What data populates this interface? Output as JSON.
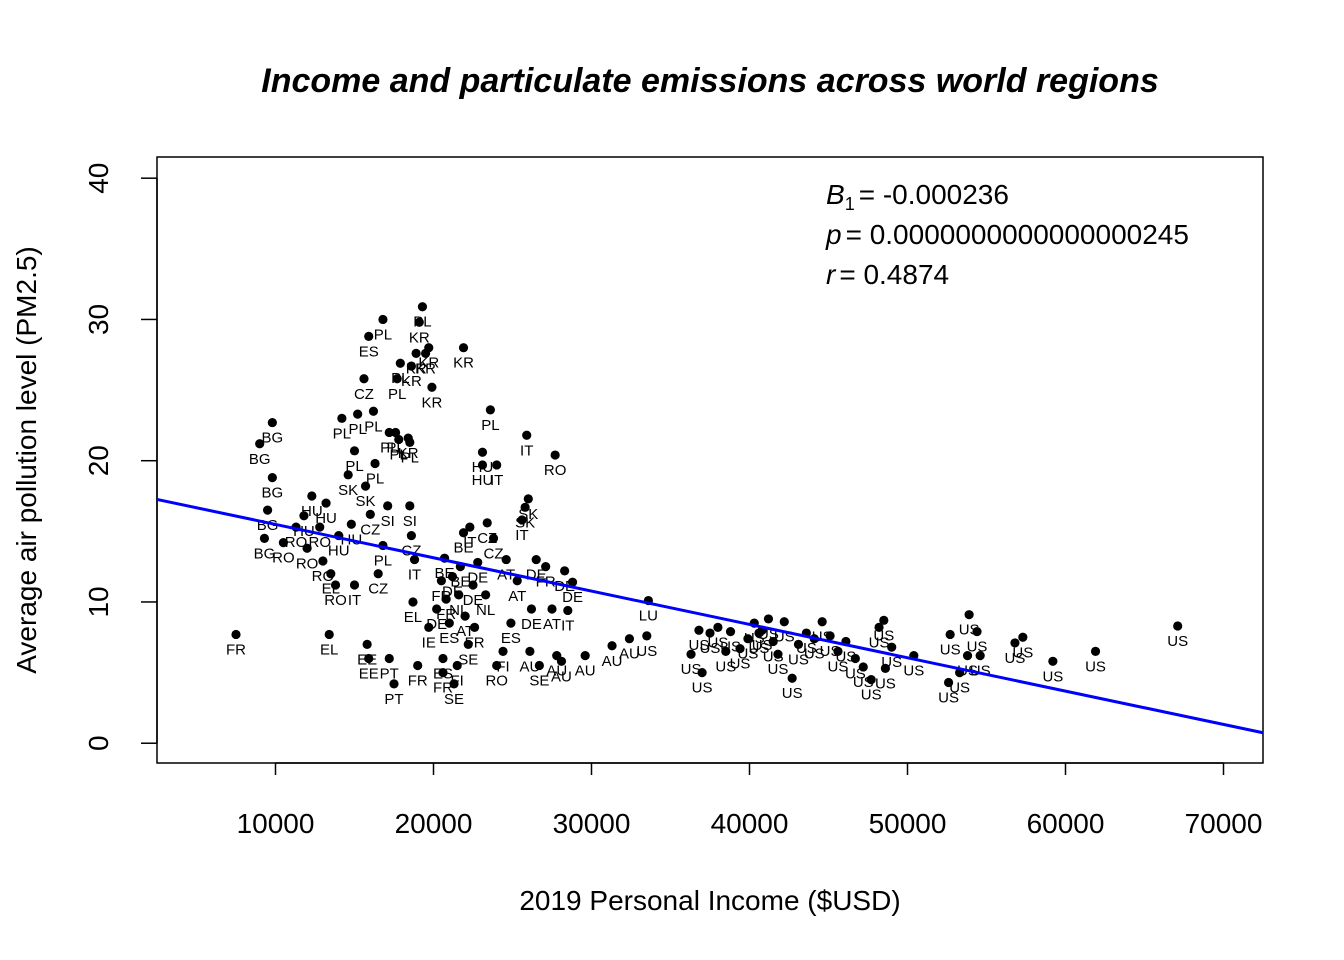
{
  "chart_data": {
    "type": "scatter",
    "title": "Income and particulate emissions across world regions",
    "xlabel": "2019 Personal Income ($USD)",
    "ylabel": "Average air pollution level (PM2.5)",
    "xlim": [
      2500,
      72500
    ],
    "ylim": [
      -1.4,
      41.5
    ],
    "xticks": [
      10000,
      20000,
      30000,
      40000,
      50000,
      60000,
      70000
    ],
    "yticks": [
      0,
      10,
      20,
      30,
      40
    ],
    "xtick_labels": [
      "10000",
      "20000",
      "30000",
      "40000",
      "50000",
      "60000",
      "70000"
    ],
    "ytick_labels": [
      "0",
      "10",
      "20",
      "30",
      "40"
    ],
    "grid": false,
    "point_color": "#000000",
    "regression": {
      "intercept": 17.85,
      "slope": -0.000236,
      "color": "#0000ff"
    },
    "annotations": {
      "b1_symbol": "B",
      "b1_sub": "1",
      "b1_value": "= -0.000236",
      "p_symbol": "p",
      "p_value": "= 0.0000000000000000245",
      "r_symbol": "r",
      "r_value": "= 0.4874"
    },
    "points": [
      {
        "x": 7500,
        "y": 7.7,
        "label": "FR"
      },
      {
        "x": 9000,
        "y": 21.2,
        "label": "BG"
      },
      {
        "x": 9800,
        "y": 22.7,
        "label": "BG"
      },
      {
        "x": 9800,
        "y": 18.8,
        "label": "BG"
      },
      {
        "x": 9500,
        "y": 16.5,
        "label": "BG"
      },
      {
        "x": 9300,
        "y": 14.5,
        "label": "BG"
      },
      {
        "x": 10500,
        "y": 14.2,
        "label": "RO"
      },
      {
        "x": 11300,
        "y": 15.3,
        "label": "RO"
      },
      {
        "x": 11800,
        "y": 16.1,
        "label": "HU"
      },
      {
        "x": 12000,
        "y": 13.8,
        "label": "RO"
      },
      {
        "x": 12300,
        "y": 17.5,
        "label": "HU"
      },
      {
        "x": 12800,
        "y": 15.3,
        "label": "RO"
      },
      {
        "x": 13000,
        "y": 12.9,
        "label": "RO"
      },
      {
        "x": 13200,
        "y": 17.0,
        "label": "HU"
      },
      {
        "x": 13400,
        "y": 7.7,
        "label": "EL"
      },
      {
        "x": 13500,
        "y": 12.0,
        "label": "EL"
      },
      {
        "x": 13800,
        "y": 11.2,
        "label": "RO"
      },
      {
        "x": 14000,
        "y": 14.7,
        "label": "HU"
      },
      {
        "x": 14200,
        "y": 23.0,
        "label": "PL"
      },
      {
        "x": 14600,
        "y": 19.0,
        "label": "SK"
      },
      {
        "x": 14800,
        "y": 15.5,
        "label": "HU"
      },
      {
        "x": 15000,
        "y": 20.7,
        "label": "PL"
      },
      {
        "x": 15000,
        "y": 11.2,
        "label": "IT"
      },
      {
        "x": 15200,
        "y": 23.3,
        "label": "PL"
      },
      {
        "x": 15600,
        "y": 25.8,
        "label": "CZ"
      },
      {
        "x": 15900,
        "y": 28.8,
        "label": "ES"
      },
      {
        "x": 15700,
        "y": 18.2,
        "label": "SK"
      },
      {
        "x": 15800,
        "y": 7.0,
        "label": "EE"
      },
      {
        "x": 15900,
        "y": 6.0,
        "label": "EE"
      },
      {
        "x": 16200,
        "y": 23.5,
        "label": "PL"
      },
      {
        "x": 16300,
        "y": 19.8,
        "label": "PL"
      },
      {
        "x": 16000,
        "y": 16.2,
        "label": "CZ"
      },
      {
        "x": 16500,
        "y": 12.0,
        "label": "CZ"
      },
      {
        "x": 16800,
        "y": 30.0,
        "label": "PL"
      },
      {
        "x": 16800,
        "y": 14.0,
        "label": "PL"
      },
      {
        "x": 17100,
        "y": 16.8,
        "label": "SI"
      },
      {
        "x": 17200,
        "y": 22.0,
        "label": "PL"
      },
      {
        "x": 17200,
        "y": 6.0,
        "label": "PT"
      },
      {
        "x": 17500,
        "y": 4.2,
        "label": "PT"
      },
      {
        "x": 17700,
        "y": 25.8,
        "label": "PL"
      },
      {
        "x": 17900,
        "y": 26.9,
        "label": "PL"
      },
      {
        "x": 17600,
        "y": 22.0,
        "label": "PL"
      },
      {
        "x": 17800,
        "y": 21.5,
        "label": "PL"
      },
      {
        "x": 18400,
        "y": 21.6,
        "label": "KR"
      },
      {
        "x": 18500,
        "y": 16.8,
        "label": "SI"
      },
      {
        "x": 18500,
        "y": 21.3,
        "label": "PL"
      },
      {
        "x": 18600,
        "y": 26.7,
        "label": "KR"
      },
      {
        "x": 18900,
        "y": 27.6,
        "label": "KR"
      },
      {
        "x": 18600,
        "y": 14.7,
        "label": "CZ"
      },
      {
        "x": 18800,
        "y": 13.0,
        "label": "IT"
      },
      {
        "x": 18700,
        "y": 10.0,
        "label": "EL"
      },
      {
        "x": 19000,
        "y": 5.5,
        "label": "FR"
      },
      {
        "x": 19100,
        "y": 29.8,
        "label": "KR"
      },
      {
        "x": 19300,
        "y": 30.9,
        "label": "PL"
      },
      {
        "x": 19500,
        "y": 27.6,
        "label": "KR"
      },
      {
        "x": 19700,
        "y": 28.0,
        "label": "KR"
      },
      {
        "x": 19900,
        "y": 25.2,
        "label": "KR"
      },
      {
        "x": 19700,
        "y": 8.2,
        "label": "IE"
      },
      {
        "x": 20200,
        "y": 9.5,
        "label": "DE"
      },
      {
        "x": 20500,
        "y": 11.5,
        "label": "FR"
      },
      {
        "x": 20600,
        "y": 6.0,
        "label": "ES"
      },
      {
        "x": 20600,
        "y": 5.0,
        "label": "FR"
      },
      {
        "x": 20700,
        "y": 13.1,
        "label": "BE"
      },
      {
        "x": 20800,
        "y": 10.2,
        "label": "FR"
      },
      {
        "x": 21000,
        "y": 8.5,
        "label": "ES"
      },
      {
        "x": 21200,
        "y": 11.8,
        "label": "DE"
      },
      {
        "x": 21300,
        "y": 4.2,
        "label": "SE"
      },
      {
        "x": 21500,
        "y": 5.5,
        "label": "FI"
      },
      {
        "x": 21600,
        "y": 10.5,
        "label": "NL"
      },
      {
        "x": 21700,
        "y": 12.5,
        "label": "BE"
      },
      {
        "x": 21900,
        "y": 28.0,
        "label": "KR"
      },
      {
        "x": 21900,
        "y": 14.9,
        "label": "BE"
      },
      {
        "x": 22000,
        "y": 9.0,
        "label": "AT"
      },
      {
        "x": 22200,
        "y": 7.0,
        "label": "SE"
      },
      {
        "x": 22300,
        "y": 15.3,
        "label": "IT"
      },
      {
        "x": 22500,
        "y": 11.2,
        "label": "DE"
      },
      {
        "x": 22600,
        "y": 8.2,
        "label": "FR"
      },
      {
        "x": 22800,
        "y": 12.8,
        "label": "DE"
      },
      {
        "x": 23100,
        "y": 20.6,
        "label": "HU"
      },
      {
        "x": 23100,
        "y": 19.7,
        "label": "HU"
      },
      {
        "x": 23300,
        "y": 10.5,
        "label": "NL"
      },
      {
        "x": 23400,
        "y": 15.6,
        "label": "CZ"
      },
      {
        "x": 23600,
        "y": 23.6,
        "label": "PL"
      },
      {
        "x": 23800,
        "y": 14.5,
        "label": "CZ"
      },
      {
        "x": 24000,
        "y": 5.5,
        "label": "RO"
      },
      {
        "x": 24000,
        "y": 19.7,
        "label": "IT"
      },
      {
        "x": 24400,
        "y": 6.5,
        "label": "FI"
      },
      {
        "x": 24600,
        "y": 13.0,
        "label": "AT"
      },
      {
        "x": 24900,
        "y": 8.5,
        "label": "ES"
      },
      {
        "x": 25300,
        "y": 11.5,
        "label": "AT"
      },
      {
        "x": 25600,
        "y": 15.8,
        "label": "IT"
      },
      {
        "x": 25800,
        "y": 16.7,
        "label": "SK"
      },
      {
        "x": 25900,
        "y": 21.8,
        "label": "IT"
      },
      {
        "x": 26000,
        "y": 17.3,
        "label": "SK"
      },
      {
        "x": 26100,
        "y": 6.5,
        "label": "AU"
      },
      {
        "x": 26200,
        "y": 9.5,
        "label": "DE"
      },
      {
        "x": 26500,
        "y": 13.0,
        "label": "DE"
      },
      {
        "x": 26700,
        "y": 5.5,
        "label": "SE"
      },
      {
        "x": 27100,
        "y": 12.5,
        "label": "FR"
      },
      {
        "x": 27500,
        "y": 9.5,
        "label": "AT"
      },
      {
        "x": 27700,
        "y": 20.4,
        "label": "RO"
      },
      {
        "x": 27800,
        "y": 6.2,
        "label": "AU"
      },
      {
        "x": 28100,
        "y": 5.8,
        "label": "AU"
      },
      {
        "x": 28300,
        "y": 12.2,
        "label": "DE"
      },
      {
        "x": 28500,
        "y": 9.4,
        "label": "IT"
      },
      {
        "x": 28800,
        "y": 11.4,
        "label": "DE"
      },
      {
        "x": 29600,
        "y": 6.2,
        "label": "AU"
      },
      {
        "x": 31300,
        "y": 6.9,
        "label": "AU"
      },
      {
        "x": 32400,
        "y": 7.4,
        "label": "AU"
      },
      {
        "x": 33500,
        "y": 7.6,
        "label": "US"
      },
      {
        "x": 33600,
        "y": 10.1,
        "label": "LU"
      },
      {
        "x": 36300,
        "y": 6.3,
        "label": "US"
      },
      {
        "x": 36800,
        "y": 8.0,
        "label": "US"
      },
      {
        "x": 37000,
        "y": 5.0,
        "label": "US"
      },
      {
        "x": 37500,
        "y": 7.8,
        "label": "US"
      },
      {
        "x": 38000,
        "y": 8.2,
        "label": "US"
      },
      {
        "x": 38500,
        "y": 6.5,
        "label": "US"
      },
      {
        "x": 38800,
        "y": 7.9,
        "label": "US"
      },
      {
        "x": 39400,
        "y": 6.7,
        "label": "US"
      },
      {
        "x": 39900,
        "y": 7.4,
        "label": "US"
      },
      {
        "x": 40300,
        "y": 8.5,
        "label": "US"
      },
      {
        "x": 40600,
        "y": 7.8,
        "label": "US"
      },
      {
        "x": 40800,
        "y": 8.0,
        "label": "US"
      },
      {
        "x": 41200,
        "y": 8.8,
        "label": "US"
      },
      {
        "x": 41500,
        "y": 7.2,
        "label": "US"
      },
      {
        "x": 41800,
        "y": 6.3,
        "label": "US"
      },
      {
        "x": 42200,
        "y": 8.6,
        "label": "US"
      },
      {
        "x": 42700,
        "y": 4.6,
        "label": "US"
      },
      {
        "x": 43100,
        "y": 7.0,
        "label": "US"
      },
      {
        "x": 43600,
        "y": 7.8,
        "label": "US"
      },
      {
        "x": 44100,
        "y": 7.4,
        "label": "US"
      },
      {
        "x": 44600,
        "y": 8.6,
        "label": "US"
      },
      {
        "x": 45100,
        "y": 7.6,
        "label": "US"
      },
      {
        "x": 45600,
        "y": 6.5,
        "label": "US"
      },
      {
        "x": 46100,
        "y": 7.2,
        "label": "US"
      },
      {
        "x": 46700,
        "y": 6.0,
        "label": "US"
      },
      {
        "x": 47200,
        "y": 5.4,
        "label": "US"
      },
      {
        "x": 47700,
        "y": 4.5,
        "label": "US"
      },
      {
        "x": 48200,
        "y": 8.2,
        "label": "US"
      },
      {
        "x": 48500,
        "y": 8.7,
        "label": "US"
      },
      {
        "x": 48600,
        "y": 5.3,
        "label": "US"
      },
      {
        "x": 49000,
        "y": 6.8,
        "label": "US"
      },
      {
        "x": 50400,
        "y": 6.2,
        "label": "US"
      },
      {
        "x": 52600,
        "y": 4.3,
        "label": "US"
      },
      {
        "x": 52700,
        "y": 7.7,
        "label": "US"
      },
      {
        "x": 53300,
        "y": 5.0,
        "label": "US"
      },
      {
        "x": 53800,
        "y": 6.2,
        "label": "US"
      },
      {
        "x": 53900,
        "y": 9.1,
        "label": "US"
      },
      {
        "x": 54400,
        "y": 7.9,
        "label": "US"
      },
      {
        "x": 54600,
        "y": 6.2,
        "label": "US"
      },
      {
        "x": 56800,
        "y": 7.1,
        "label": "US"
      },
      {
        "x": 57300,
        "y": 7.5,
        "label": "US"
      },
      {
        "x": 59200,
        "y": 5.8,
        "label": "US"
      },
      {
        "x": 61900,
        "y": 6.5,
        "label": "US"
      },
      {
        "x": 67100,
        "y": 8.3,
        "label": "US"
      }
    ]
  }
}
